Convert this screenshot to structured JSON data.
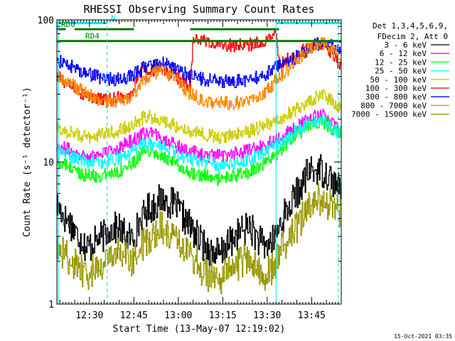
{
  "chart_data": {
    "type": "line",
    "title": "RHESSI Observing Summary Count Rates",
    "xlabel": "Start Time (13-May-07 12:19:02)",
    "ylabel": "Count Rate (s⁻¹ detector⁻¹)",
    "yscale": "log",
    "ylim": [
      1,
      100
    ],
    "y_ticks": [
      "1",
      "10",
      "100"
    ],
    "xlim_minutes_after_start": [
      0,
      96
    ],
    "x_ticks": [
      {
        "minute": 11,
        "label": "12:30"
      },
      {
        "minute": 26,
        "label": "12:45"
      },
      {
        "minute": 41,
        "label": "13:00"
      },
      {
        "minute": 56,
        "label": "13:15"
      },
      {
        "minute": 71,
        "label": "13:30"
      },
      {
        "minute": 86,
        "label": "13:45"
      }
    ],
    "legend_position": "right",
    "legend_header": [
      "Det 1,3,4,5,6,9,",
      "FDecim 2, Att 0"
    ],
    "footer_date": "15-Oct-2021 03:35",
    "bars": [
      {
        "label": "N",
        "color": "#00e5ee",
        "y": 95,
        "start": 0,
        "end": 17
      },
      {
        "label": "",
        "color": "#00e5ee",
        "y": 95,
        "start": 74,
        "end": 96
      },
      {
        "label": "RD0",
        "color": "#007700",
        "y": 86,
        "start": 0,
        "end": 3
      },
      {
        "label": "",
        "color": "#007700",
        "y": 86,
        "start": 6,
        "end": 26
      },
      {
        "label": "",
        "color": "#007700",
        "y": 86,
        "start": 45,
        "end": 75
      },
      {
        "label": "RD4",
        "color": "#007700",
        "y": 71,
        "start": 0,
        "end": 96
      }
    ],
    "vlines": [
      {
        "minute": 0.5,
        "color": "#00e5ee",
        "style": "solid"
      },
      {
        "minute": 17,
        "color": "#00e5ee",
        "style": "dashed"
      },
      {
        "minute": 74,
        "color": "#00e5ee",
        "style": "solid"
      },
      {
        "minute": 95,
        "color": "#00e5ee",
        "style": "dashed"
      }
    ],
    "series": [
      {
        "name": "3 - 6 keV",
        "color": "#000000",
        "x": [
          0,
          10,
          20,
          25,
          30,
          35,
          40,
          45,
          50,
          55,
          60,
          65,
          70,
          73,
          76,
          80,
          84,
          88,
          92,
          95
        ],
        "y": [
          5,
          2.5,
          3.5,
          2.8,
          4.5,
          5.5,
          5,
          3.5,
          2.5,
          2.2,
          3,
          3.5,
          2.5,
          2.8,
          4,
          5.5,
          8,
          9,
          8,
          6.5
        ]
      },
      {
        "name": "6 - 12 keV",
        "color": "#ff00ff",
        "x": [
          0,
          5,
          10,
          15,
          20,
          25,
          30,
          35,
          40,
          45,
          50,
          55,
          60,
          65,
          70,
          75,
          80,
          85,
          90,
          95
        ],
        "y": [
          13,
          12,
          11,
          11.5,
          12.5,
          14,
          16,
          15,
          13,
          12,
          11,
          11,
          11.5,
          12,
          13,
          15,
          17,
          20,
          22,
          17
        ]
      },
      {
        "name": "12 - 25 keV",
        "color": "#00ff00",
        "x": [
          0,
          5,
          10,
          15,
          20,
          25,
          30,
          35,
          40,
          45,
          50,
          55,
          60,
          65,
          70,
          75,
          80,
          85,
          90,
          95
        ],
        "y": [
          10,
          9,
          8,
          8,
          8.5,
          9.5,
          12,
          11,
          9.5,
          8.5,
          8,
          7.5,
          8,
          8.5,
          9.5,
          12,
          15,
          18,
          19,
          16
        ]
      },
      {
        "name": "25 - 50 keV",
        "color": "#00ffff",
        "x": [
          0,
          5,
          10,
          15,
          20,
          25,
          30,
          35,
          40,
          45,
          50,
          55,
          60,
          65,
          70,
          75,
          80,
          85,
          90,
          95
        ],
        "y": [
          12,
          11,
          10,
          10,
          10.5,
          11.5,
          13.5,
          13,
          11.5,
          10.5,
          10,
          9.5,
          10,
          10.5,
          11.5,
          13.5,
          16,
          19,
          20,
          16
        ]
      },
      {
        "name": "50 - 100 keV",
        "color": "#cccc00",
        "x": [
          0,
          5,
          10,
          15,
          20,
          25,
          30,
          35,
          40,
          45,
          50,
          55,
          60,
          65,
          70,
          75,
          80,
          85,
          90,
          95
        ],
        "y": [
          17,
          16,
          15,
          15.5,
          16.5,
          18,
          21,
          20,
          18,
          16.5,
          15.5,
          15,
          15.5,
          16.5,
          18,
          20,
          23,
          27,
          30,
          24
        ]
      },
      {
        "name": "100 - 300 keV",
        "color": "#ff0000",
        "x": [
          0,
          4,
          8,
          12,
          16,
          20,
          24,
          26,
          27,
          30,
          35,
          40,
          45,
          46,
          50,
          55,
          60,
          65,
          70,
          74,
          75,
          80,
          85,
          90,
          95
        ],
        "y": [
          40,
          35,
          31,
          28,
          27,
          28,
          30,
          33,
          40,
          44,
          45,
          40,
          34,
          75,
          70,
          67,
          66,
          67,
          70,
          80,
          50,
          55,
          65,
          70,
          50
        ]
      },
      {
        "name": "300 - 800 keV",
        "color": "#0000ff",
        "x": [
          0,
          5,
          10,
          15,
          20,
          25,
          30,
          35,
          40,
          45,
          50,
          55,
          60,
          65,
          70,
          74,
          78,
          82,
          86,
          90,
          95
        ],
        "y": [
          52,
          47,
          42,
          39,
          38,
          40,
          47,
          50,
          46,
          40,
          38,
          37,
          37,
          38,
          41,
          46,
          50,
          57,
          65,
          70,
          62
        ]
      },
      {
        "name": "800 - 7000 keV",
        "color": "#ff8800",
        "x": [
          0,
          5,
          10,
          15,
          20,
          25,
          30,
          35,
          40,
          45,
          50,
          55,
          60,
          65,
          70,
          74,
          78,
          82,
          86,
          90,
          95
        ],
        "y": [
          40,
          35,
          30,
          27,
          26,
          28,
          38,
          45,
          38,
          30,
          27,
          26,
          26,
          27,
          30,
          38,
          45,
          55,
          65,
          68,
          55
        ]
      },
      {
        "name": "7000 - 15000 keV",
        "color": "#999900",
        "x": [
          0,
          10,
          20,
          25,
          30,
          35,
          40,
          45,
          50,
          55,
          60,
          65,
          70,
          73,
          76,
          80,
          84,
          88,
          92,
          95
        ],
        "y": [
          2.5,
          1.6,
          2.3,
          2,
          2.8,
          3.5,
          3,
          2.3,
          1.6,
          1.5,
          1.8,
          2.2,
          1.6,
          1.8,
          2.5,
          3.2,
          4.5,
          5.5,
          5,
          4.5
        ]
      }
    ]
  }
}
